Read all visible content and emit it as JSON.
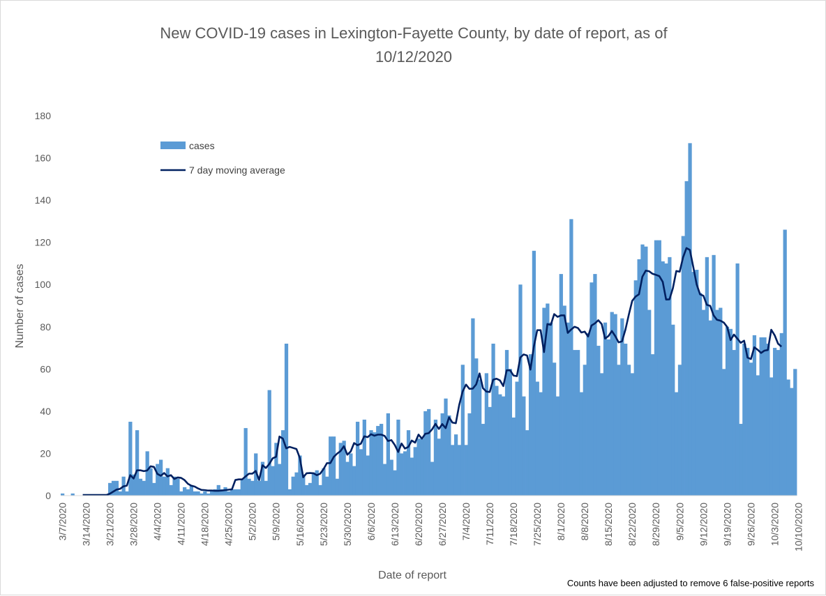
{
  "chart_data": {
    "type": "bar",
    "title_line1": "New COVID-19 cases in Lexington-Fayette County, by date of report, as of",
    "title_line2": "10/12/2020",
    "xlabel": "Date of report",
    "ylabel": "Number of cases",
    "footnote": "Counts have been adjusted to remove 6 false-positive reports",
    "ylim": [
      0,
      180
    ],
    "yticks": [
      "0",
      "20",
      "40",
      "60",
      "80",
      "100",
      "120",
      "140",
      "160",
      "180"
    ],
    "xticks": [
      "3/7/2020",
      "3/14/2020",
      "3/21/2020",
      "3/28/2020",
      "4/4/2020",
      "4/11/2020",
      "4/18/2020",
      "4/25/2020",
      "5/2/2020",
      "5/9/2020",
      "5/16/2020",
      "5/23/2020",
      "5/30/2020",
      "6/6/2020",
      "6/13/2020",
      "6/20/2020",
      "6/27/2020",
      "7/4/2020",
      "7/11/2020",
      "7/18/2020",
      "7/25/2020",
      "8/1/2020",
      "8/8/2020",
      "8/15/2020",
      "8/22/2020",
      "8/29/2020",
      "9/5/2020",
      "9/12/2020",
      "9/19/2020",
      "9/26/2020",
      "10/3/2020",
      "10/10/2020"
    ],
    "x_start": "3/7/2020",
    "x_end": "10/12/2020",
    "grid": false,
    "legend_position": "top-left",
    "series": [
      {
        "name": "cases",
        "kind": "bar",
        "color": "#5b9bd5",
        "values": [
          1,
          0,
          0,
          1,
          0,
          0,
          0,
          0,
          0,
          0,
          0,
          0,
          0,
          0,
          6,
          7,
          7,
          2,
          9,
          2,
          35,
          10,
          31,
          8,
          7,
          21,
          13,
          6,
          15,
          17,
          9,
          13,
          5,
          9,
          8,
          2,
          4,
          3,
          5,
          2,
          2,
          1,
          2,
          1,
          2,
          3,
          5,
          3,
          4,
          2,
          3,
          3,
          3,
          8,
          32,
          8,
          7,
          20,
          7,
          16,
          7,
          50,
          14,
          25,
          15,
          31,
          72,
          3,
          9,
          11,
          19,
          10,
          5,
          6,
          11,
          12,
          5,
          13,
          9,
          28,
          28,
          8,
          25,
          26,
          16,
          20,
          14,
          35,
          22,
          36,
          19,
          31,
          30,
          33,
          34,
          15,
          39,
          17,
          12,
          36,
          20,
          21,
          31,
          18,
          23,
          27,
          27,
          40,
          41,
          16,
          36,
          27,
          39,
          46,
          38,
          24,
          29,
          24,
          62,
          24,
          39,
          84,
          65,
          55,
          34,
          58,
          42,
          72,
          52,
          48,
          47,
          69,
          60,
          37,
          54,
          100,
          47,
          31,
          67,
          116,
          54,
          49,
          89,
          91,
          82,
          63,
          47,
          105,
          90,
          82,
          131,
          69,
          69,
          49,
          62,
          77,
          101,
          105,
          71,
          58,
          82,
          74,
          87,
          86,
          62,
          84,
          72,
          62,
          58,
          102,
          112,
          119,
          118,
          88,
          67,
          121,
          121,
          111,
          110,
          113,
          81,
          49,
          62,
          123,
          149,
          167,
          106,
          107,
          96,
          88,
          113,
          83,
          114,
          88,
          89,
          60,
          80,
          79,
          69,
          110,
          34,
          72,
          70,
          63,
          76,
          57,
          75,
          75,
          72,
          56,
          70,
          69,
          77,
          126,
          55,
          51,
          60
        ]
      },
      {
        "name": "7 day moving average",
        "kind": "line",
        "color": "#002060",
        "start_index": 6,
        "values": [
          0.3,
          0.3,
          0.3,
          0.3,
          0.3,
          0.3,
          0.3,
          0.3,
          0.9,
          1.9,
          2.9,
          3.2,
          4.4,
          4.7,
          9.7,
          8.1,
          12,
          12,
          11.6,
          11.9,
          13.9,
          13.6,
          10.3,
          9.4,
          10.7,
          9.1,
          9.7,
          7.9,
          8.6,
          8.4,
          7.4,
          5.6,
          4.7,
          4.3,
          3.4,
          2.7,
          2.6,
          2.4,
          2.4,
          2.3,
          2.3,
          2.4,
          2.6,
          2.8,
          3,
          7.4,
          7.7,
          7.7,
          9.1,
          10.4,
          10.4,
          11.7,
          7.4,
          14.4,
          13.1,
          15,
          17.7,
          18.4,
          28,
          27,
          22.4,
          23.1,
          22.6,
          22.1,
          17.9,
          8.7,
          10.6,
          10.7,
          10.6,
          9.7,
          10.4,
          12.6,
          15.4,
          15.4,
          18.3,
          19.9,
          21.1,
          23.4,
          19.4,
          20.9,
          24.9,
          23.9,
          24.6,
          28.1,
          27.7,
          29.1,
          28.4,
          28.9,
          28.9,
          28.3,
          25.9,
          26.3,
          24,
          20.7,
          24.7,
          22.3,
          23.1,
          26.1,
          25.1,
          28.9,
          27,
          29.3,
          29.6,
          31.4,
          34,
          31.6,
          33.9,
          32,
          37.1,
          34.6,
          34.3,
          43,
          49.3,
          52.6,
          50.6,
          50.7,
          52.7,
          57.9,
          50.9,
          49.3,
          49.1,
          54.9,
          55.4,
          54.6,
          51.9,
          59.4,
          59.4,
          56.9,
          56.6,
          65.4,
          66.9,
          66.4,
          59.7,
          70.6,
          78.4,
          78.4,
          68,
          81.3,
          80.9,
          86,
          84.7,
          85.4,
          85.4,
          77.1,
          78.7,
          80,
          79.4,
          77.3,
          77.7,
          75.4,
          80.6,
          81.6,
          83.1,
          81.3,
          74.4,
          75.6,
          78,
          75.6,
          72.6,
          73.1,
          78.6,
          85.7,
          92.3,
          94.3,
          95.4,
          103.7,
          106.6,
          106.3,
          105.1,
          104.6,
          104,
          101.3,
          92.9,
          93,
          98.3,
          106.4,
          106.1,
          112.9,
          117.3,
          116.4,
          108.4,
          100.1,
          95.4,
          94.7,
          90.4,
          89.9,
          85.4,
          83.3,
          82.9,
          82,
          79.9,
          73.7,
          76.3,
          74.4,
          72.4,
          73.4,
          65.4,
          64.7,
          70.3,
          69.1,
          67.6,
          68.7,
          69,
          78.6,
          76,
          72,
          70.6
        ]
      }
    ]
  }
}
